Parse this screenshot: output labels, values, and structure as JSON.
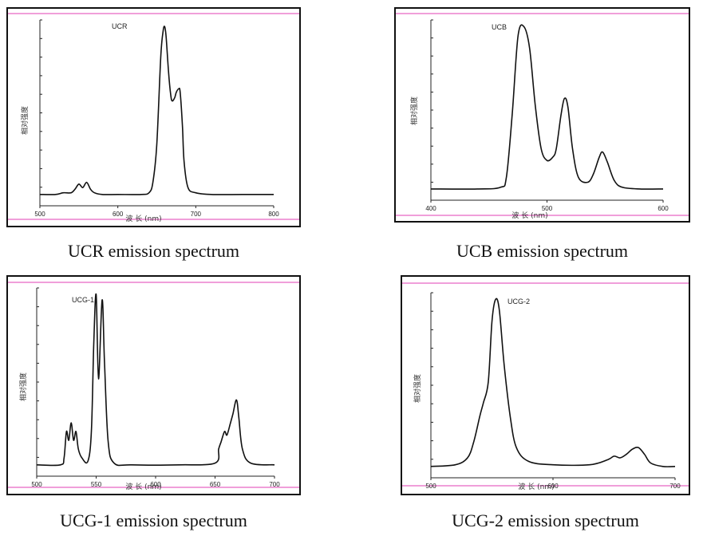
{
  "captions": [
    "UCR emission spectrum",
    "UCB emission spectrum",
    "UCG-1 emission spectrum",
    "UCG-2 emission spectrum"
  ],
  "chart_data": [
    {
      "type": "line",
      "series_label": "UCR",
      "xlabel": "波 长 (nm)",
      "ylabel": "相对强度",
      "xlim": [
        500,
        800
      ],
      "xticks": [
        500,
        600,
        700,
        800
      ],
      "ylim": [
        0,
        100
      ],
      "y_ticks_count": 10,
      "x": [
        500,
        520,
        530,
        540,
        545,
        550,
        555,
        560,
        565,
        570,
        580,
        600,
        630,
        640,
        645,
        650,
        655,
        658,
        660,
        662,
        665,
        668,
        670,
        673,
        675,
        678,
        680,
        683,
        685,
        690,
        700,
        720,
        760,
        800
      ],
      "y": [
        1,
        1,
        2,
        2,
        4,
        7,
        5,
        8,
        4,
        2,
        1,
        1,
        1,
        2,
        8,
        30,
        80,
        95,
        98,
        92,
        72,
        58,
        55,
        57,
        60,
        62,
        60,
        40,
        20,
        5,
        2,
        1,
        1,
        1
      ],
      "grid": false,
      "color": "#111111"
    },
    {
      "type": "line",
      "series_label": "UCB",
      "xlabel": "波 长 (nm)",
      "ylabel": "相对强度",
      "xlim": [
        400,
        600
      ],
      "xticks": [
        400,
        500,
        600
      ],
      "ylim": [
        0,
        100
      ],
      "y_ticks_count": 10,
      "x": [
        400,
        440,
        460,
        465,
        470,
        475,
        480,
        485,
        490,
        495,
        500,
        505,
        508,
        512,
        515,
        518,
        522,
        527,
        535,
        540,
        545,
        548,
        552,
        558,
        565,
        580,
        600
      ],
      "y": [
        1,
        1,
        2,
        8,
        45,
        92,
        98,
        85,
        50,
        25,
        18,
        20,
        25,
        45,
        55,
        50,
        25,
        8,
        5,
        10,
        20,
        23,
        17,
        6,
        2,
        1,
        1
      ],
      "grid": false,
      "color": "#111111"
    },
    {
      "type": "line",
      "series_label": "UCG-1",
      "xlabel": "波 长 (nm)",
      "ylabel": "相对强度",
      "xlim": [
        500,
        700
      ],
      "xticks": [
        500,
        550,
        600,
        650,
        700
      ],
      "ylim": [
        0,
        100
      ],
      "y_ticks_count": 10,
      "x": [
        500,
        520,
        523,
        525,
        527,
        529,
        531,
        533,
        535,
        538,
        543,
        546,
        548,
        550,
        552,
        555,
        557,
        560,
        565,
        580,
        620,
        650,
        653,
        655,
        658,
        660,
        663,
        665,
        668,
        670,
        673,
        680,
        700
      ],
      "y": [
        1,
        1,
        5,
        20,
        15,
        25,
        15,
        20,
        10,
        5,
        3,
        20,
        70,
        98,
        50,
        95,
        60,
        15,
        2,
        1,
        1,
        2,
        10,
        14,
        20,
        18,
        25,
        30,
        38,
        28,
        10,
        2,
        1
      ],
      "grid": false,
      "color": "#111111"
    },
    {
      "type": "line",
      "series_label": "UCG-2",
      "xlabel": "波 长 (nm)",
      "ylabel": "相对强度",
      "xlim": [
        500,
        700
      ],
      "xticks": [
        500,
        600,
        700
      ],
      "ylim": [
        0,
        100
      ],
      "y_ticks_count": 10,
      "x": [
        500,
        520,
        530,
        535,
        540,
        543,
        547,
        550,
        553,
        556,
        560,
        565,
        570,
        580,
        600,
        630,
        645,
        650,
        655,
        660,
        665,
        670,
        675,
        680,
        690,
        700
      ],
      "y": [
        1,
        2,
        6,
        15,
        30,
        38,
        50,
        85,
        98,
        92,
        60,
        30,
        12,
        4,
        2,
        2,
        5,
        7,
        6,
        8,
        11,
        12,
        8,
        3,
        1,
        1
      ],
      "grid": false,
      "color": "#111111"
    }
  ]
}
